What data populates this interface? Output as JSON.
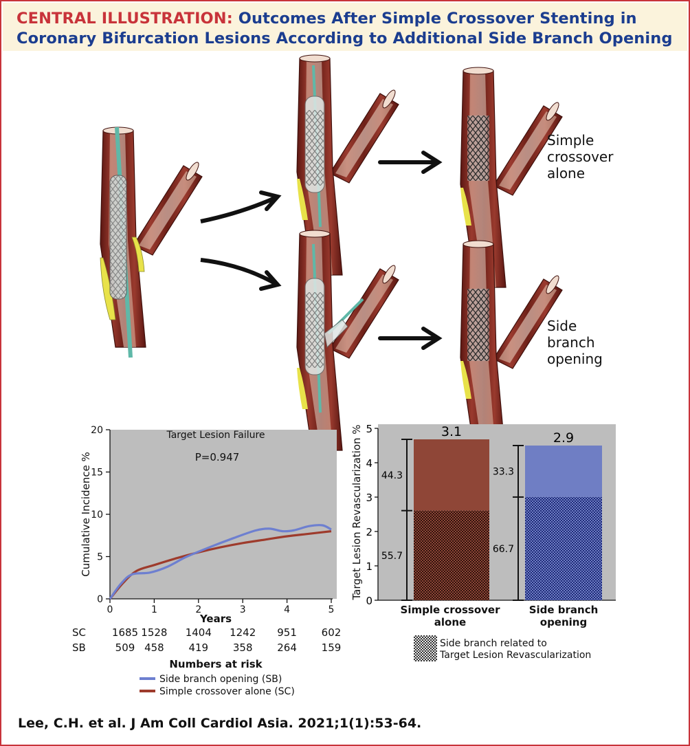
{
  "header": {
    "prefix": "CENTRAL ILLUSTRATION:",
    "title_part1": "Outcomes After Simple Crossover Stenting in",
    "title_part2": "Coronary Bifurcation Lesions According to Additional Side Branch Opening"
  },
  "illustration": {
    "label_top": [
      "Simple",
      "crossover",
      "alone"
    ],
    "label_bottom": [
      "Side",
      "branch",
      "opening"
    ]
  },
  "left_chart": {
    "title": "Target Lesion Failure",
    "pvalue": "P=0.947",
    "xlabel": "Years",
    "ylabel": "Cumulative Incidence %",
    "risk_title": "Numbers at risk",
    "risk_rows": [
      {
        "label": "SC",
        "values": [
          "1685",
          "1528",
          "1404",
          "1242",
          "951",
          "602"
        ]
      },
      {
        "label": "SB",
        "values": [
          "509",
          "458",
          "419",
          "358",
          "264",
          "159"
        ]
      }
    ],
    "legend": [
      "Side branch opening (SB)",
      "Simple crossover alone (SC)"
    ]
  },
  "right_chart": {
    "ylabel": "Target Lesion Revascularization %",
    "bars": [
      {
        "label_line1": "Simple crossover",
        "label_line2": "alone",
        "total_label": "3.1",
        "upper_pct": "44.3",
        "lower_pct": "55.7"
      },
      {
        "label_line1": "Side branch",
        "label_line2": "opening",
        "total_label": "2.9",
        "upper_pct": "33.3",
        "lower_pct": "66.7"
      }
    ],
    "legend_line1": "Side branch related to",
    "legend_line2": "Target Lesion Revascularization"
  },
  "chart_data": [
    {
      "type": "line",
      "title": "Target Lesion Failure",
      "annotation": "P=0.947",
      "xlabel": "Years",
      "ylabel": "Cumulative Incidence %",
      "xlim": [
        0,
        5
      ],
      "ylim": [
        0,
        20
      ],
      "xticks": [
        0,
        1,
        2,
        3,
        4,
        5
      ],
      "yticks": [
        0,
        5,
        10,
        15,
        20
      ],
      "grid": false,
      "series": [
        {
          "name": "Side branch opening (SB)",
          "color": "#6d7fd0",
          "x": [
            0,
            0.25,
            0.5,
            0.9,
            1.3,
            1.7,
            2.2,
            2.8,
            3.3,
            3.6,
            3.9,
            4.15,
            4.5,
            4.8,
            5.0
          ],
          "y": [
            0,
            1.8,
            2.9,
            3.1,
            3.8,
            4.9,
            6.0,
            7.2,
            8.1,
            8.3,
            8.0,
            8.1,
            8.6,
            8.7,
            8.2
          ]
        },
        {
          "name": "Simple crossover alone (SC)",
          "color": "#9e3b2c",
          "x": [
            0,
            0.3,
            0.6,
            1.0,
            1.5,
            2.0,
            2.5,
            3.0,
            3.5,
            4.0,
            4.5,
            5.0
          ],
          "y": [
            0,
            1.9,
            3.3,
            4.0,
            4.8,
            5.5,
            6.1,
            6.6,
            7.0,
            7.4,
            7.7,
            8.0
          ]
        }
      ],
      "numbers_at_risk": {
        "x": [
          0,
          1,
          2,
          3,
          4,
          5
        ],
        "SC": [
          1685,
          1528,
          1404,
          1242,
          951,
          602
        ],
        "SB": [
          509,
          458,
          419,
          358,
          264,
          159
        ]
      }
    },
    {
      "type": "bar",
      "stacked": true,
      "ylabel": "Target Lesion Revascularization %",
      "ylim": [
        0,
        5
      ],
      "yticks": [
        0,
        1,
        2,
        3,
        4,
        5
      ],
      "categories": [
        "Simple crossover alone",
        "Side branch opening"
      ],
      "totals": [
        3.1,
        2.9
      ],
      "series": [
        {
          "name": "Side branch related to Target Lesion Revascularization",
          "pattern": "dotted",
          "values_pct": [
            55.7,
            66.7
          ]
        },
        {
          "name": "",
          "values_pct": [
            44.3,
            33.3
          ]
        }
      ],
      "colors": [
        "#8f4637",
        "#6f7ec4"
      ]
    }
  ]
}
